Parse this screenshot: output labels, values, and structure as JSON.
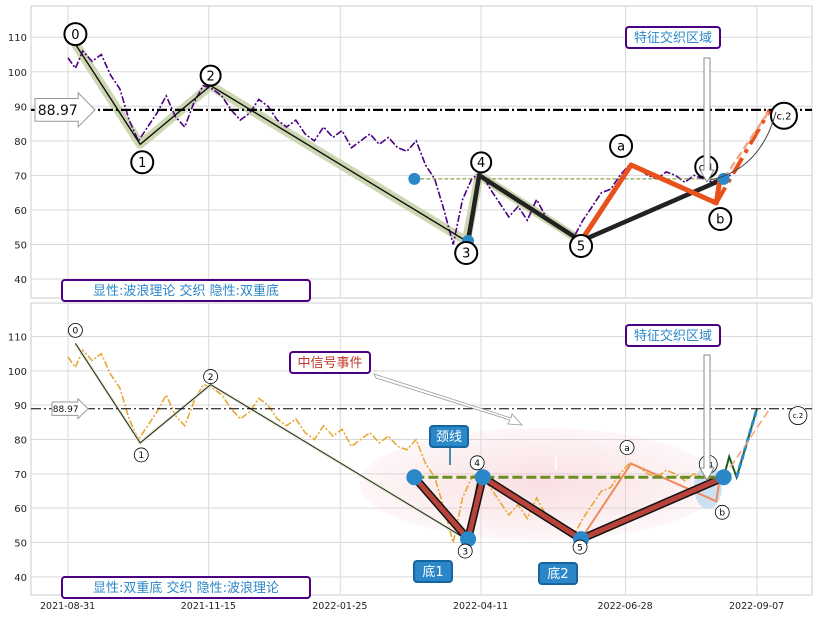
{
  "chart_data": [
    {
      "type": "line",
      "panel": "top",
      "ylim": [
        35,
        120
      ],
      "yticks": [
        40,
        50,
        60,
        70,
        80,
        90,
        100,
        110
      ],
      "hline": {
        "value": 88.97,
        "label": "88.97",
        "style": "dash-dot"
      },
      "box_label": "显性:波浪理论 交织 隐性:双重底",
      "region_label": "特征交织区域",
      "price_series": {
        "color": "#4b0082",
        "x": [
          "2021-08-31",
          "2021-09-04",
          "2021-09-08",
          "2021-09-13",
          "2021-09-18",
          "2021-09-23",
          "2021-09-28",
          "2021-10-03",
          "2021-10-08",
          "2021-10-13",
          "2021-10-18",
          "2021-10-23",
          "2021-10-28",
          "2021-11-02",
          "2021-11-07",
          "2021-11-12",
          "2021-11-17",
          "2021-11-22",
          "2021-11-27",
          "2021-12-02",
          "2021-12-07",
          "2021-12-12",
          "2021-12-17",
          "2021-12-22",
          "2021-12-27",
          "2022-01-01",
          "2022-01-06",
          "2022-01-11",
          "2022-01-16",
          "2022-01-21",
          "2022-01-26",
          "2022-01-31",
          "2022-02-05",
          "2022-02-10",
          "2022-02-15",
          "2022-02-20",
          "2022-02-25",
          "2022-03-02",
          "2022-03-07",
          "2022-03-12",
          "2022-03-17",
          "2022-03-22",
          "2022-03-27",
          "2022-04-01",
          "2022-04-06",
          "2022-04-11",
          "2022-04-16",
          "2022-04-21",
          "2022-04-26",
          "2022-05-01",
          "2022-05-06",
          "2022-05-11",
          "2022-05-16",
          "2022-05-21",
          "2022-05-26",
          "2022-05-31",
          "2022-06-05",
          "2022-06-10",
          "2022-06-15",
          "2022-06-20",
          "2022-06-25",
          "2022-06-30",
          "2022-07-05",
          "2022-07-10",
          "2022-07-15",
          "2022-07-20",
          "2022-07-25",
          "2022-07-30",
          "2022-08-04",
          "2022-08-09",
          "2022-08-14",
          "2022-08-19",
          "2022-08-24"
        ],
        "y": [
          104,
          101,
          106,
          103,
          105,
          99,
          95,
          86,
          80,
          84,
          88,
          93,
          87,
          84,
          91,
          96,
          95,
          93,
          89,
          86,
          88,
          92,
          90,
          86,
          84,
          86,
          82,
          80,
          84,
          81,
          83,
          78,
          80,
          82,
          79,
          81,
          78,
          77,
          80,
          73,
          69,
          60,
          50,
          63,
          69,
          71,
          66,
          62,
          58,
          61,
          57,
          63,
          58,
          56,
          54,
          52,
          57,
          61,
          65,
          66,
          70,
          73,
          72,
          70,
          69,
          71,
          70,
          68,
          70,
          69,
          68,
          70,
          70
        ]
      },
      "wave_path": {
        "labels": [
          "0",
          "1",
          "2",
          "3",
          "4",
          "5",
          "a",
          "b",
          "c.1",
          "c.2"
        ],
        "x": [
          "2021-09-04",
          "2021-10-09",
          "2021-11-16",
          "2022-04-03",
          "2022-04-10",
          "2022-06-04",
          "2022-07-01",
          "2022-08-16",
          "2022-08-16",
          "2022-09-14"
        ],
        "y": [
          108,
          79,
          96,
          51,
          70,
          51,
          73,
          62,
          69,
          89
        ]
      },
      "neckline": {
        "value": 69,
        "x_start": "2022-03-06",
        "x_end": "2022-08-20"
      },
      "marked_points": {
        "x": [
          "2022-03-06",
          "2022-04-04",
          "2022-08-20"
        ],
        "y": [
          69,
          51,
          69
        ]
      }
    },
    {
      "type": "line",
      "panel": "bottom",
      "ylim": [
        35,
        120
      ],
      "yticks": [
        40,
        50,
        60,
        70,
        80,
        90,
        100,
        110
      ],
      "xticks": [
        "2021-08-31",
        "2021-11-15",
        "2022-01-25",
        "2022-04-11",
        "2022-06-28",
        "2022-09-07"
      ],
      "hline": {
        "value": 88.97,
        "label": "88.97",
        "style": "dash-dot"
      },
      "box_label": "显性:双重底 交织 隐性:波浪理论",
      "region_label": "特征交织区域",
      "event_label": "中信号事件",
      "neck_label": "颈线",
      "bottom_labels": [
        "底1",
        "底2"
      ],
      "price_series": {
        "color": "#e8a838",
        "x": [
          "2021-08-31",
          "2021-09-04",
          "2021-09-08",
          "2021-09-13",
          "2021-09-18",
          "2021-09-23",
          "2021-09-28",
          "2021-10-03",
          "2021-10-08",
          "2021-10-13",
          "2021-10-18",
          "2021-10-23",
          "2021-10-28",
          "2021-11-02",
          "2021-11-07",
          "2021-11-12",
          "2021-11-17",
          "2021-11-22",
          "2021-11-27",
          "2021-12-02",
          "2021-12-07",
          "2021-12-12",
          "2021-12-17",
          "2021-12-22",
          "2021-12-27",
          "2022-01-01",
          "2022-01-06",
          "2022-01-11",
          "2022-01-16",
          "2022-01-21",
          "2022-01-26",
          "2022-01-31",
          "2022-02-05",
          "2022-02-10",
          "2022-02-15",
          "2022-02-20",
          "2022-02-25",
          "2022-03-02",
          "2022-03-07",
          "2022-03-12",
          "2022-03-17",
          "2022-03-22",
          "2022-03-27",
          "2022-04-01",
          "2022-04-06",
          "2022-04-11",
          "2022-04-16",
          "2022-04-21",
          "2022-04-26",
          "2022-05-01",
          "2022-05-06",
          "2022-05-11",
          "2022-05-16",
          "2022-05-21",
          "2022-05-26",
          "2022-05-31",
          "2022-06-05",
          "2022-06-10",
          "2022-06-15",
          "2022-06-20",
          "2022-06-25",
          "2022-06-30",
          "2022-07-05",
          "2022-07-10",
          "2022-07-15",
          "2022-07-20",
          "2022-07-25",
          "2022-07-30",
          "2022-08-04",
          "2022-08-09",
          "2022-08-14",
          "2022-08-19",
          "2022-08-24"
        ],
        "y": [
          104,
          101,
          106,
          103,
          105,
          99,
          95,
          86,
          80,
          84,
          88,
          93,
          87,
          84,
          91,
          96,
          95,
          93,
          89,
          86,
          88,
          92,
          90,
          86,
          84,
          86,
          82,
          80,
          84,
          81,
          83,
          78,
          80,
          82,
          79,
          81,
          78,
          77,
          80,
          73,
          69,
          60,
          50,
          63,
          69,
          71,
          66,
          62,
          58,
          61,
          57,
          63,
          58,
          56,
          54,
          52,
          57,
          61,
          65,
          66,
          70,
          73,
          72,
          70,
          69,
          71,
          70,
          68,
          70,
          69,
          68,
          70,
          70
        ]
      },
      "wave_path": {
        "labels": [
          "0",
          "1",
          "2",
          "3",
          "4",
          "5",
          "a",
          "b",
          "c.1",
          "c.2"
        ],
        "x": [
          "2021-09-04",
          "2021-10-09",
          "2021-11-16",
          "2022-04-03",
          "2022-04-10",
          "2022-06-04",
          "2022-07-01",
          "2022-08-16",
          "2022-08-16",
          "2022-09-14"
        ],
        "y": [
          108,
          79,
          96,
          51,
          70,
          51,
          73,
          62,
          69,
          89
        ]
      },
      "double_bottom": {
        "x": [
          "2022-03-06",
          "2022-04-04",
          "2022-04-12",
          "2022-06-04",
          "2022-08-20"
        ],
        "y": [
          69,
          51,
          69,
          51,
          69
        ]
      },
      "neckline": {
        "value": 69,
        "x_start": "2022-03-06",
        "x_end": "2022-08-20"
      }
    }
  ]
}
